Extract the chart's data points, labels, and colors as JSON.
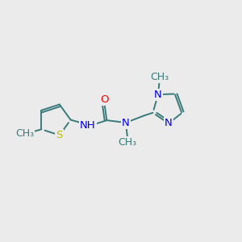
{
  "background_color": "#ebebeb",
  "bond_color": "#3a7a7a",
  "atom_colors": {
    "O": "#ff0000",
    "N": "#0000ee",
    "S": "#bbbb00",
    "C": "#3a7a7a"
  },
  "font_size": 9.5,
  "lw": 1.4,
  "xlim": [
    0,
    10
  ],
  "ylim": [
    0,
    10
  ]
}
